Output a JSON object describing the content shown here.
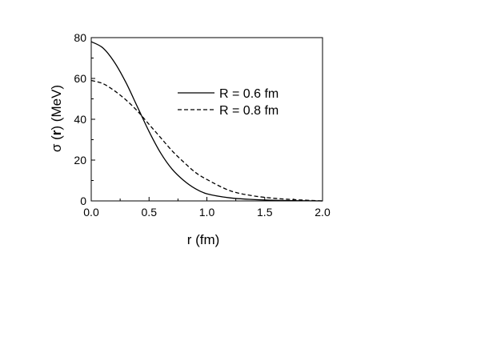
{
  "chart_data": {
    "type": "line",
    "xlabel": "r (fm)",
    "ylabel": "σ (r) (MeV)",
    "ylabel_parts": {
      "prefix": "σ (",
      "bold": "r",
      "suffix": ") (MeV)"
    },
    "xlim": [
      0.0,
      2.0
    ],
    "ylim": [
      0,
      80
    ],
    "x_ticks": [
      0.0,
      0.5,
      1.0,
      1.5,
      2.0
    ],
    "x_tick_labels": [
      "0.0",
      "0.5",
      "1.0",
      "1.5",
      "2.0"
    ],
    "y_ticks": [
      0,
      20,
      40,
      60,
      80
    ],
    "y_tick_labels": [
      "0",
      "20",
      "40",
      "60",
      "80"
    ],
    "grid": false,
    "legend_position": "top-right",
    "series": [
      {
        "name": "R = 0.6 fm",
        "style": "solid",
        "x": [
          0.0,
          0.1,
          0.2,
          0.3,
          0.4,
          0.5,
          0.6,
          0.7,
          0.8,
          0.9,
          1.0,
          1.2,
          1.4,
          1.6,
          1.8,
          2.0
        ],
        "y": [
          78,
          75,
          68,
          58,
          46,
          34,
          23.5,
          15.5,
          10,
          6,
          3.5,
          1.5,
          0.7,
          0.3,
          0.1,
          0
        ]
      },
      {
        "name": "R = 0.8 fm",
        "style": "dashed",
        "x": [
          0.0,
          0.1,
          0.2,
          0.3,
          0.4,
          0.5,
          0.6,
          0.7,
          0.8,
          0.9,
          1.0,
          1.2,
          1.4,
          1.6,
          1.8,
          2.0
        ],
        "y": [
          59,
          57.5,
          54,
          49.5,
          44,
          37.5,
          31,
          24.5,
          19,
          14,
          10.5,
          5,
          2.5,
          1.2,
          0.5,
          0
        ]
      }
    ]
  }
}
